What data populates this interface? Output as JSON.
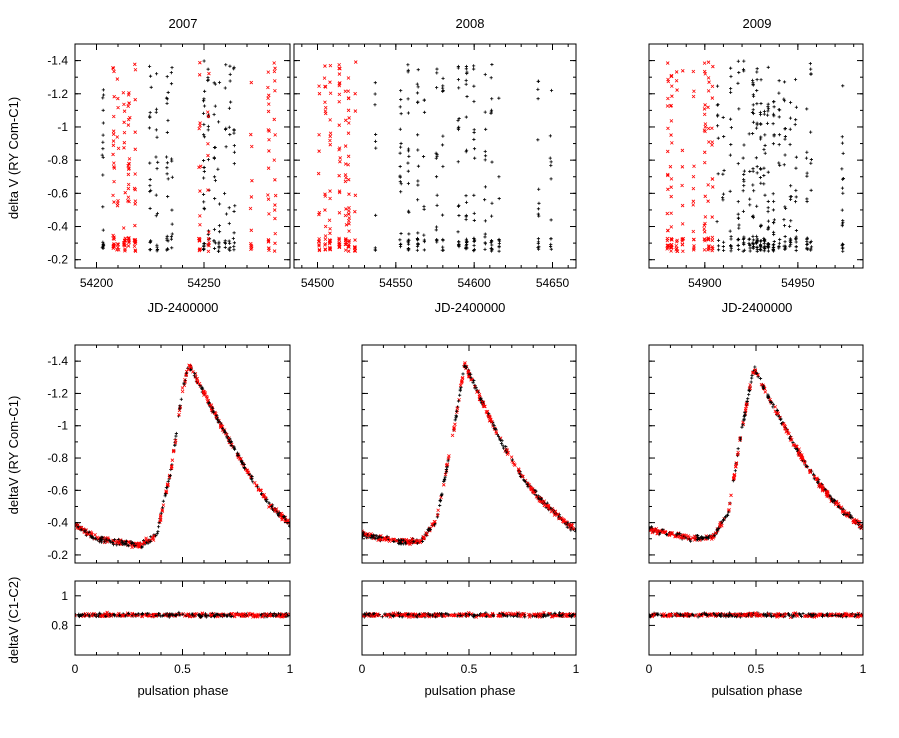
{
  "colors": {
    "series_a": "#000000",
    "series_b": "#ff0000",
    "axis": "#000000",
    "background": "#ffffff"
  },
  "chart_data": [
    {
      "type": "scatter",
      "title": "2007",
      "xlabel": "JD-2400000",
      "ylabel": "delta V (RY Com-C1)",
      "xlim": [
        54190,
        54290
      ],
      "ylim": [
        -0.15,
        -1.5
      ],
      "y_inverted": true,
      "xticks": [
        "54200",
        "54250"
      ],
      "xtick_values": [
        54200,
        54250
      ],
      "yticks": [
        "-1.4",
        "-1.2",
        "-1",
        "-0.8",
        "-0.6",
        "-0.4",
        "-0.2"
      ],
      "ytick_values": [
        -1.4,
        -1.2,
        -1,
        -0.8,
        -0.6,
        -0.4,
        -0.2
      ],
      "series": [
        {
          "color": "#000000",
          "marker": "+",
          "x": [
            54203,
            54225,
            54228,
            54233,
            54235,
            54250,
            54252,
            54255,
            54257,
            54260,
            54262,
            54264
          ]
        },
        {
          "color": "#ff0000",
          "marker": "x",
          "x": [
            54208,
            54210,
            54213,
            54215,
            54218,
            54248,
            54252,
            54272,
            54280,
            54283
          ]
        }
      ]
    },
    {
      "type": "scatter",
      "title": "2008",
      "xlabel": "JD-2400000",
      "ylabel": "",
      "xlim": [
        54485,
        54665
      ],
      "ylim": [
        -0.15,
        -1.5
      ],
      "y_inverted": true,
      "xticks": [
        "54500",
        "54550",
        "54600",
        "54650"
      ],
      "xtick_values": [
        54500,
        54550,
        54600,
        54650
      ],
      "yticks": [
        "-1.4",
        "-1.2",
        "-1",
        "-0.8",
        "-0.6",
        "-0.4",
        "-0.2"
      ],
      "ytick_values": [
        -1.4,
        -1.2,
        -1,
        -0.8,
        -0.6,
        -0.4,
        -0.2
      ],
      "series": [
        {
          "color": "#000000",
          "marker": "+",
          "x": [
            54537,
            54553,
            54558,
            54564,
            54568,
            54576,
            54580,
            54590,
            54595,
            54600,
            54607,
            54611,
            54616,
            54641,
            54649
          ]
        },
        {
          "color": "#ff0000",
          "marker": "x",
          "x": [
            54501,
            54505,
            54508,
            54514,
            54518,
            54520,
            54524
          ]
        }
      ]
    },
    {
      "type": "scatter",
      "title": "2009",
      "xlabel": "JD-2400000",
      "ylabel": "",
      "xlim": [
        54870,
        54985
      ],
      "ylim": [
        -0.15,
        -1.5
      ],
      "y_inverted": true,
      "xticks": [
        "54900",
        "54950"
      ],
      "xtick_values": [
        54900,
        54950
      ],
      "yticks": [
        "-1.4",
        "-1.2",
        "-1",
        "-0.8",
        "-0.6",
        "-0.4",
        "-0.2"
      ],
      "ytick_values": [
        -1.4,
        -1.2,
        -1,
        -0.8,
        -0.6,
        -0.4,
        -0.2
      ],
      "series": [
        {
          "color": "#000000",
          "marker": "+",
          "x": [
            54907,
            54910,
            54914,
            54918,
            54921,
            54924,
            54926,
            54928,
            54930,
            54932,
            54934,
            54937,
            54940,
            54943,
            54946,
            54949,
            54955,
            54957,
            54974
          ]
        },
        {
          "color": "#ff0000",
          "marker": "x",
          "x": [
            54880,
            54882,
            54885,
            54888,
            54894,
            54900,
            54902,
            54904
          ]
        }
      ]
    },
    {
      "type": "scatter",
      "xlabel": "",
      "ylabel": "deltaV (RY Com-C1)",
      "xlim": [
        0,
        1
      ],
      "ylim": [
        -0.15,
        -1.5
      ],
      "y_inverted": true,
      "yticks": [
        "-1.4",
        "-1.2",
        "-1",
        "-0.8",
        "-0.6",
        "-0.4",
        "-0.2"
      ],
      "ytick_values": [
        -1.4,
        -1.2,
        -1,
        -0.8,
        -0.6,
        -0.4,
        -0.2
      ],
      "peak_phase": 0.53,
      "peak": -1.38,
      "curve": {
        "x": [
          0,
          0.1,
          0.2,
          0.3,
          0.38,
          0.45,
          0.5,
          0.53,
          0.6,
          0.7,
          0.8,
          0.9,
          1.0
        ],
        "y": [
          -0.39,
          -0.3,
          -0.28,
          -0.26,
          -0.32,
          -0.75,
          -1.22,
          -1.38,
          -1.2,
          -0.95,
          -0.72,
          -0.52,
          -0.39
        ]
      }
    },
    {
      "type": "scatter",
      "xlabel": "",
      "ylabel": "",
      "xlim": [
        0,
        1
      ],
      "ylim": [
        -0.15,
        -1.5
      ],
      "y_inverted": true,
      "yticks": [
        "-1.4",
        "-1.2",
        "-1",
        "-0.8",
        "-0.6",
        "-0.4",
        "-0.2"
      ],
      "ytick_values": [
        -1.4,
        -1.2,
        -1,
        -0.8,
        -0.6,
        -0.4,
        -0.2
      ],
      "peak_phase": 0.48,
      "peak": -1.38,
      "curve": {
        "x": [
          0,
          0.1,
          0.2,
          0.28,
          0.35,
          0.42,
          0.48,
          0.55,
          0.65,
          0.75,
          0.85,
          0.95,
          1.0
        ],
        "y": [
          -0.33,
          -0.3,
          -0.28,
          -0.29,
          -0.42,
          -0.9,
          -1.38,
          -1.18,
          -0.9,
          -0.68,
          -0.52,
          -0.4,
          -0.35
        ]
      }
    },
    {
      "type": "scatter",
      "xlabel": "",
      "ylabel": "",
      "xlim": [
        0,
        1
      ],
      "ylim": [
        -0.15,
        -1.5
      ],
      "y_inverted": true,
      "yticks": [
        "-1.4",
        "-1.2",
        "-1",
        "-0.8",
        "-0.6",
        "-0.4",
        "-0.2"
      ],
      "ytick_values": [
        -1.4,
        -1.2,
        -1,
        -0.8,
        -0.6,
        -0.4,
        -0.2
      ],
      "peak_phase": 0.49,
      "peak": -1.36,
      "curve": {
        "x": [
          0,
          0.1,
          0.2,
          0.3,
          0.37,
          0.43,
          0.49,
          0.55,
          0.65,
          0.75,
          0.85,
          0.95,
          1.0
        ],
        "y": [
          -0.36,
          -0.33,
          -0.3,
          -0.31,
          -0.46,
          -0.95,
          -1.36,
          -1.2,
          -0.95,
          -0.72,
          -0.55,
          -0.42,
          -0.37
        ]
      }
    },
    {
      "type": "scatter",
      "xlabel": "pulsation phase",
      "ylabel": "deltaV (C1-C2)",
      "xlim": [
        0,
        1
      ],
      "ylim": [
        0.6,
        1.1
      ],
      "y_inverted": true,
      "xticks": [
        "0",
        "0.5",
        "1"
      ],
      "xtick_values": [
        0,
        0.5,
        1
      ],
      "yticks": [
        "0.8",
        "1"
      ],
      "ytick_values": [
        0.8,
        1
      ],
      "level": 0.87
    },
    {
      "type": "scatter",
      "xlabel": "pulsation phase",
      "ylabel": "",
      "xlim": [
        0,
        1
      ],
      "ylim": [
        0.6,
        1.1
      ],
      "y_inverted": true,
      "xticks": [
        "0",
        "0.5",
        "1"
      ],
      "xtick_values": [
        0,
        0.5,
        1
      ],
      "yticks": [],
      "ytick_values": [
        0.8,
        1
      ],
      "level": 0.87
    },
    {
      "type": "scatter",
      "xlabel": "pulsation phase",
      "ylabel": "",
      "xlim": [
        0,
        1
      ],
      "ylim": [
        0.6,
        1.1
      ],
      "y_inverted": true,
      "xticks": [
        "0",
        "0.5",
        "1"
      ],
      "xtick_values": [
        0,
        0.5,
        1
      ],
      "yticks": [],
      "ytick_values": [
        0.8,
        1
      ],
      "level": 0.87
    }
  ]
}
